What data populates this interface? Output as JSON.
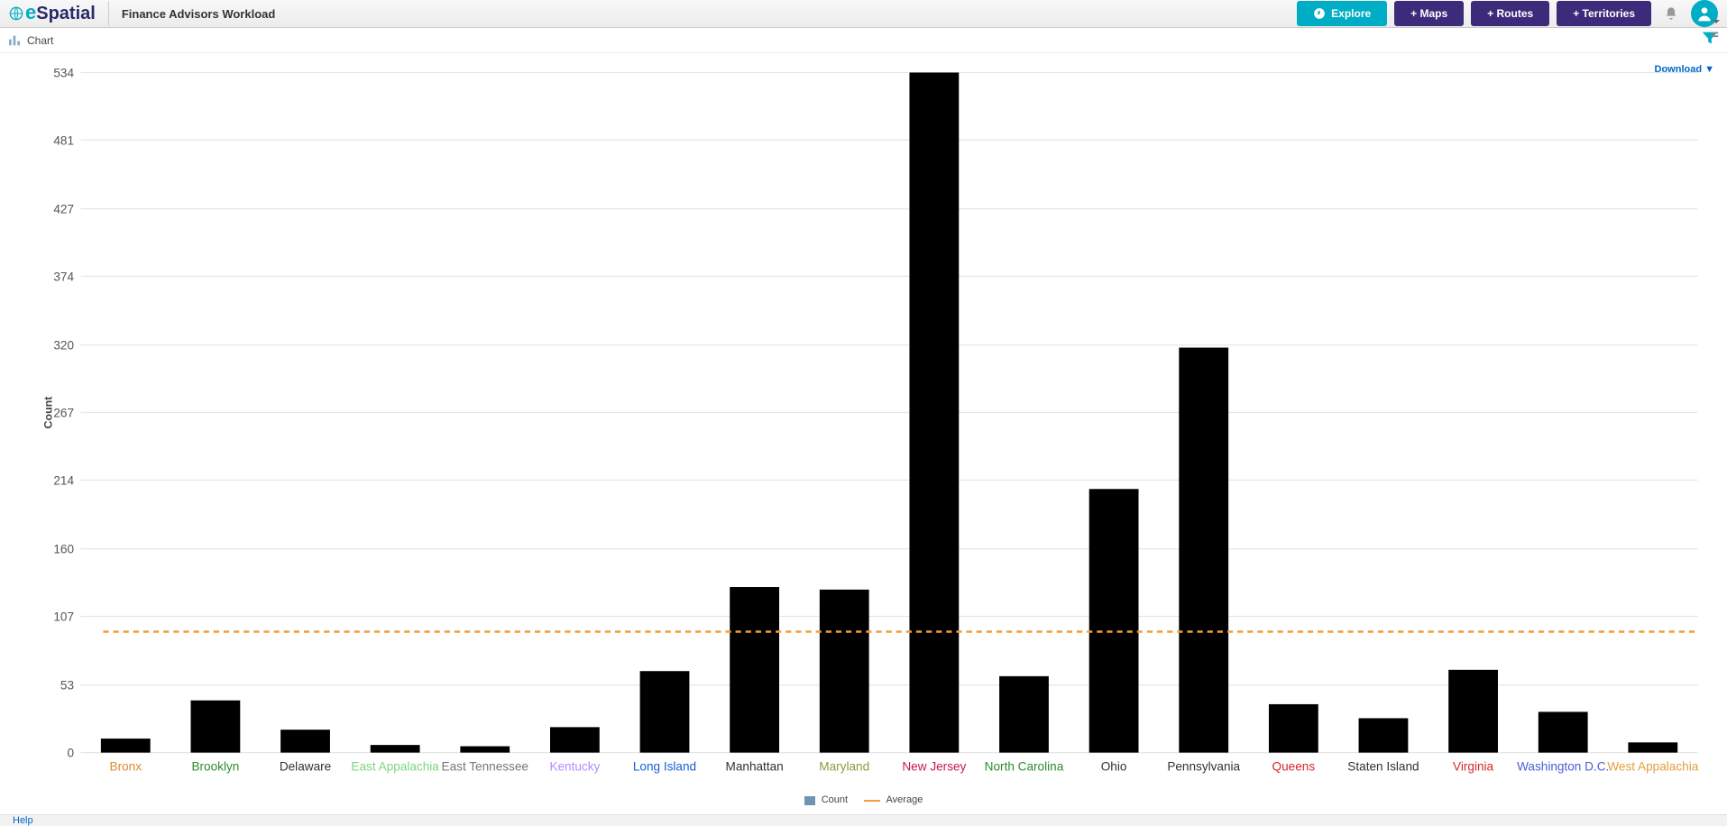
{
  "header": {
    "logo_e": "e",
    "logo_rest": "Spatial",
    "page_title": "Finance Advisors Workload",
    "explore_label": "Explore",
    "maps_label": "+ Maps",
    "routes_label": "+ Routes",
    "territories_label": "+ Territories"
  },
  "toolbar": {
    "chart_label": "Chart",
    "download_label": "Download ▼"
  },
  "chart": {
    "type": "bar",
    "ylabel": "Count",
    "ylim": [
      0,
      534
    ],
    "yticks": [
      0,
      53,
      107,
      160,
      214,
      267,
      320,
      374,
      427,
      481,
      534
    ],
    "average": 95,
    "bar_color": "#6d93b5",
    "grid_color": "#e6e6e6",
    "avg_color": "#f39c3c",
    "background_color": "#ffffff",
    "bar_width_ratio": 0.55,
    "categories": [
      {
        "label": "Bronx",
        "value": 11,
        "color": "#e08a2e"
      },
      {
        "label": "Brooklyn",
        "value": 41,
        "color": "#2e8b2e"
      },
      {
        "label": "Delaware",
        "value": 18,
        "color": "#333333"
      },
      {
        "label": "East Appalachia",
        "value": 6,
        "color": "#7ed67e"
      },
      {
        "label": "East Tennessee",
        "value": 5,
        "color": "#777777"
      },
      {
        "label": "Kentucky",
        "value": 20,
        "color": "#b38bff"
      },
      {
        "label": "Long Island",
        "value": 64,
        "color": "#1a5fd6"
      },
      {
        "label": "Manhattan",
        "value": 130,
        "color": "#333333"
      },
      {
        "label": "Maryland",
        "value": 128,
        "color": "#8a9e3c"
      },
      {
        "label": "New Jersey",
        "value": 534,
        "color": "#c2185b"
      },
      {
        "label": "North Carolina",
        "value": 60,
        "color": "#2e8b2e"
      },
      {
        "label": "Ohio",
        "value": 207,
        "color": "#333333"
      },
      {
        "label": "Pennsylvania",
        "value": 318,
        "color": "#333333"
      },
      {
        "label": "Queens",
        "value": 38,
        "color": "#d62828"
      },
      {
        "label": "Staten Island",
        "value": 27,
        "color": "#333333"
      },
      {
        "label": "Virginia",
        "value": 65,
        "color": "#d62828"
      },
      {
        "label": "Washington D.C.",
        "value": 32,
        "color": "#4a5fd6"
      },
      {
        "label": "West Appalachia",
        "value": 8,
        "color": "#e0a03c"
      }
    ],
    "legend": {
      "count_label": "Count",
      "average_label": "Average"
    }
  },
  "footer": {
    "help_label": "Help"
  }
}
